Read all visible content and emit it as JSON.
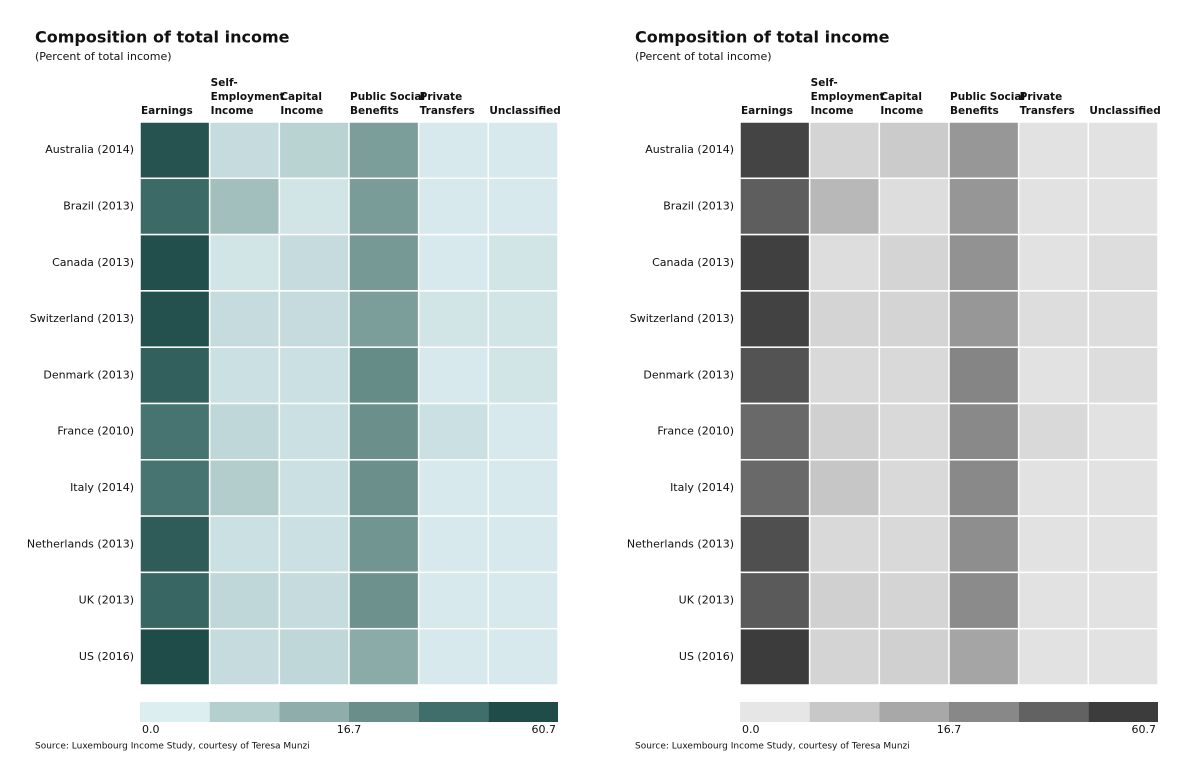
{
  "chart_data": [
    {
      "type": "heatmap",
      "title": "Composition of total income",
      "subtitle": "(Percent of total income)",
      "columns": [
        [
          "Earnings"
        ],
        [
          "Self-",
          "Employment",
          "Income"
        ],
        [
          "Capital",
          "Income"
        ],
        [
          "Public Social",
          "Benefits"
        ],
        [
          "Private",
          "Transfers"
        ],
        [
          "Unclassified"
        ]
      ],
      "categories": [
        "Australia (2014)",
        "Brazil (2013)",
        "Canada (2013)",
        "Switzerland (2013)",
        "Denmark (2013)",
        "France (2010)",
        "Italy (2014)",
        "Netherlands (2013)",
        "UK (2013)",
        "US (2016)"
      ],
      "values": [
        [
          57,
          4,
          6,
          17,
          1,
          1
        ],
        [
          45,
          10,
          2,
          18,
          1,
          1
        ],
        [
          59,
          2,
          4,
          20,
          1,
          2
        ],
        [
          58,
          4,
          4,
          17,
          2,
          2
        ],
        [
          50,
          3,
          3,
          27,
          1,
          2
        ],
        [
          40,
          5,
          3,
          25,
          3,
          1
        ],
        [
          40,
          7,
          3,
          25,
          1,
          1
        ],
        [
          52,
          3,
          3,
          22,
          1,
          1
        ],
        [
          47,
          5,
          4,
          24,
          1,
          1
        ],
        [
          60.7,
          4,
          5,
          14,
          1,
          1
        ]
      ],
      "colors": [
        "#ddeef1",
        "#b5cfcf",
        "#8faeab",
        "#6a8f8b",
        "#3f6e6b",
        "#1f4b48"
      ],
      "ticks": [
        {
          "value": 0,
          "label": "0.0"
        },
        16.7,
        60.7
      ],
      "source": "Source: Luxembourg Income Study, courtesy of Teresa Munzi"
    },
    {
      "type": "heatmap",
      "title": "Composition of total income",
      "subtitle": "(Percent of total income)",
      "columns": [
        [
          "Earnings"
        ],
        [
          "Self-",
          "Employment",
          "Income"
        ],
        [
          "Capital",
          "Income"
        ],
        [
          "Public Social",
          "Benefits"
        ],
        [
          "Private",
          "Transfers"
        ],
        [
          "Unclassified"
        ]
      ],
      "categories": [
        "Australia (2014)",
        "Brazil (2013)",
        "Canada (2013)",
        "Switzerland (2013)",
        "Denmark (2013)",
        "France (2010)",
        "Italy (2014)",
        "Netherlands (2013)",
        "UK (2013)",
        "US (2016)"
      ],
      "values": [
        [
          57,
          4,
          6,
          17,
          1,
          1
        ],
        [
          45,
          10,
          2,
          18,
          1,
          1
        ],
        [
          59,
          2,
          4,
          20,
          1,
          2
        ],
        [
          58,
          4,
          4,
          17,
          2,
          2
        ],
        [
          50,
          3,
          3,
          27,
          1,
          2
        ],
        [
          40,
          5,
          3,
          25,
          3,
          1
        ],
        [
          40,
          7,
          3,
          25,
          1,
          1
        ],
        [
          52,
          3,
          3,
          22,
          1,
          1
        ],
        [
          47,
          5,
          4,
          24,
          1,
          1
        ],
        [
          60.7,
          4,
          5,
          14,
          1,
          1
        ]
      ],
      "colors": [
        "#e6e6e6",
        "#c8c8c8",
        "#a8a8a8",
        "#888888",
        "#626262",
        "#3c3c3c"
      ],
      "ticks": [
        {
          "value": 0,
          "label": "0.0"
        },
        16.7,
        60.7
      ],
      "source": "Source: Luxembourg Income Study, courtesy of Teresa Munzi"
    }
  ]
}
